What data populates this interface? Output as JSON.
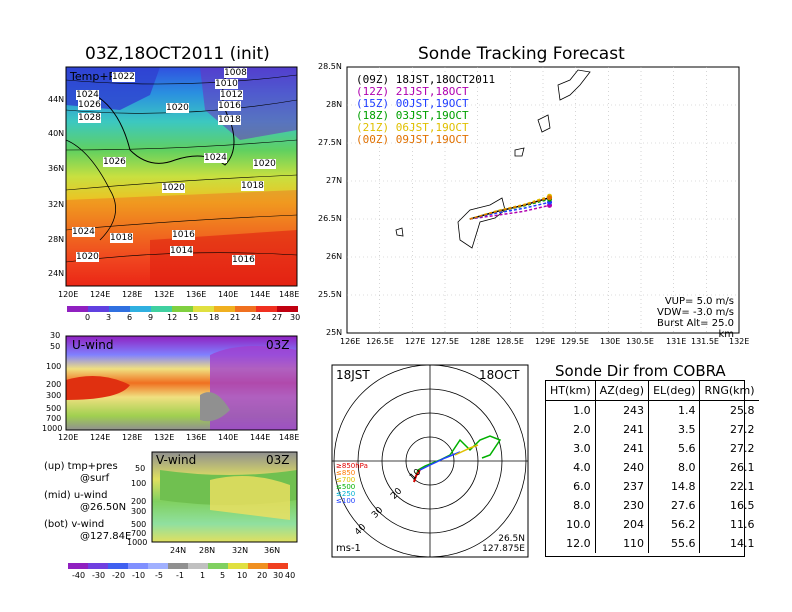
{
  "left_map": {
    "title": "03Z,18OCT2011 (init)",
    "overlay_label": "Temp+Pres",
    "y_ticks": [
      "44N",
      "40N",
      "36N",
      "32N",
      "28N",
      "24N"
    ],
    "x_ticks": [
      "120E",
      "124E",
      "128E",
      "132E",
      "136E",
      "140E",
      "144E",
      "148E"
    ],
    "isobars": [
      "1022",
      "1008",
      "1024",
      "1010",
      "1012",
      "1026",
      "1020",
      "1016",
      "1028",
      "1018",
      "1026",
      "1024",
      "1020",
      "1020",
      "1018",
      "1024",
      "1018",
      "1016",
      "1014",
      "1020",
      "1016"
    ],
    "colorbar": [
      "0",
      "3",
      "6",
      "9",
      "12",
      "15",
      "18",
      "21",
      "24",
      "27",
      "30"
    ]
  },
  "uwind": {
    "label": "U-wind",
    "time": "03Z",
    "y_ticks": [
      "30",
      "50",
      "100",
      "200",
      "300",
      "500",
      "700",
      "1000"
    ],
    "x_ticks": [
      "120E",
      "124E",
      "128E",
      "132E",
      "136E",
      "140E",
      "144E",
      "148E"
    ]
  },
  "vwind": {
    "label": "V-wind",
    "time": "03Z",
    "y_ticks": [
      "50",
      "100",
      "200",
      "300",
      "500",
      "700",
      "1000"
    ],
    "x_ticks": [
      "24N",
      "28N",
      "32N",
      "36N"
    ]
  },
  "legend_text": {
    "up": "(up) tmp+pres",
    "up2": "@surf",
    "mid": "(mid) u-wind",
    "mid2": "@26.50N",
    "bot": "(bot) v-wind",
    "bot2": "@127.84E"
  },
  "wind_colorbar": [
    "-40",
    "-30",
    "-20",
    "-10",
    "-5",
    "-1",
    "1",
    "5",
    "10",
    "20",
    "30",
    "40"
  ],
  "track": {
    "title": "Sonde Tracking Forecast",
    "legend": [
      {
        "text": "(09Z) 18JST,18OCT2011",
        "color": "#000000"
      },
      {
        "text": "(12Z) 21JST,18OCT",
        "color": "#b000b0"
      },
      {
        "text": "(15Z) 00JST,19OCT",
        "color": "#1e3cff"
      },
      {
        "text": "(18Z) 03JST,19OCT",
        "color": "#00a000"
      },
      {
        "text": "(21Z) 06JST,19OCT",
        "color": "#e0c000"
      },
      {
        "text": "(00Z) 09JST,19OCT",
        "color": "#e07000"
      }
    ],
    "y_ticks": [
      "28.5N",
      "28N",
      "27.5N",
      "27N",
      "26.5N",
      "26N",
      "25.5N",
      "25N"
    ],
    "x_ticks": [
      "126E",
      "126.5E",
      "127E",
      "127.5E",
      "128E",
      "128.5E",
      "129E",
      "129.5E",
      "130E",
      "130.5E",
      "131E",
      "131.5E",
      "132E"
    ],
    "params": [
      "VUP= 5.0 m/s",
      "VDW= -3.0 m/s",
      "Burst Alt= 25.0 km"
    ]
  },
  "polar": {
    "time_jst": "18JST",
    "date": "18OCT",
    "ring_labels": [
      "10",
      "20",
      "30",
      "40"
    ],
    "level_legend": [
      {
        "text": "≥850hPa",
        "color": "#e00000"
      },
      {
        "text": "≤850",
        "color": "#ff7a00"
      },
      {
        "text": "≤700",
        "color": "#e0c000"
      },
      {
        "text": "≤500",
        "color": "#00b000"
      },
      {
        "text": "≤250",
        "color": "#00b0d0"
      },
      {
        "text": "≤100",
        "color": "#2040ff"
      }
    ],
    "unit": "ms-1",
    "loc1": "26.5N",
    "loc2": "127.875E"
  },
  "sonde_table": {
    "title": "Sonde Dir from COBRA",
    "headers": [
      "HT(km)",
      "AZ(deg)",
      "EL(deg)",
      "RNG(km)"
    ],
    "rows": [
      [
        "1.0",
        "243",
        "1.4",
        "25.8"
      ],
      [
        "2.0",
        "241",
        "3.5",
        "27.2"
      ],
      [
        "3.0",
        "241",
        "5.6",
        "27.2"
      ],
      [
        "4.0",
        "240",
        "8.0",
        "26.1"
      ],
      [
        "6.0",
        "237",
        "14.8",
        "22.1"
      ],
      [
        "8.0",
        "230",
        "27.6",
        "16.5"
      ],
      [
        "10.0",
        "204",
        "56.2",
        "11.6"
      ],
      [
        "12.0",
        "110",
        "55.6",
        "14.1"
      ]
    ]
  },
  "chart_data": [
    {
      "type": "heatmap",
      "title": "03Z,18OCT2011 (init)",
      "xlabel": "",
      "ylabel": "",
      "x_ticks": [
        "120E",
        "124E",
        "128E",
        "132E",
        "136E",
        "140E",
        "144E",
        "148E"
      ],
      "y_ticks": [
        "24N",
        "28N",
        "32N",
        "36N",
        "40N",
        "44N"
      ],
      "colorbar_levels": [
        0,
        3,
        6,
        9,
        12,
        15,
        18,
        21,
        24,
        27,
        30
      ],
      "isobar_labels": [
        1008,
        1010,
        1012,
        1014,
        1016,
        1018,
        1020,
        1022,
        1024,
        1026,
        1028
      ]
    },
    {
      "type": "line",
      "title": "Sonde Tracking Forecast",
      "xlim": [
        126,
        132
      ],
      "ylim": [
        25,
        28.5
      ],
      "series": [
        {
          "name": "(09Z) 18JST,18OCT2011",
          "x": [
            127.88,
            128.3,
            128.7,
            129.1
          ],
          "y": [
            26.5,
            26.6,
            26.68,
            26.78
          ]
        },
        {
          "name": "(12Z) 21JST,18OCT",
          "x": [
            127.88,
            128.3,
            128.7,
            129.1
          ],
          "y": [
            26.5,
            26.55,
            26.6,
            26.68
          ]
        },
        {
          "name": "(15Z) 00JST,19OCT",
          "x": [
            127.88,
            128.3,
            128.7,
            129.1
          ],
          "y": [
            26.5,
            26.58,
            26.64,
            26.72
          ]
        },
        {
          "name": "(18Z) 03JST,19OCT",
          "x": [
            127.88,
            128.3,
            128.7,
            129.1
          ],
          "y": [
            26.5,
            26.6,
            26.67,
            26.76
          ]
        },
        {
          "name": "(21Z) 06JST,19OCT",
          "x": [
            127.88,
            128.3,
            128.7,
            129.1
          ],
          "y": [
            26.5,
            26.61,
            26.69,
            26.8
          ]
        },
        {
          "name": "(00Z) 09JST,19OCT",
          "x": [
            127.88,
            128.3,
            128.7,
            129.1
          ],
          "y": [
            26.5,
            26.6,
            26.68,
            26.78
          ]
        }
      ]
    },
    {
      "type": "table",
      "title": "Sonde Dir from COBRA",
      "columns": [
        "HT(km)",
        "AZ(deg)",
        "EL(deg)",
        "RNG(km)"
      ],
      "rows": [
        [
          1.0,
          243,
          1.4,
          25.8
        ],
        [
          2.0,
          241,
          3.5,
          27.2
        ],
        [
          3.0,
          241,
          5.6,
          27.2
        ],
        [
          4.0,
          240,
          8.0,
          26.1
        ],
        [
          6.0,
          237,
          14.8,
          22.1
        ],
        [
          8.0,
          230,
          27.6,
          16.5
        ],
        [
          10.0,
          204,
          56.2,
          11.6
        ],
        [
          12.0,
          110,
          55.6,
          14.1
        ]
      ]
    }
  ]
}
